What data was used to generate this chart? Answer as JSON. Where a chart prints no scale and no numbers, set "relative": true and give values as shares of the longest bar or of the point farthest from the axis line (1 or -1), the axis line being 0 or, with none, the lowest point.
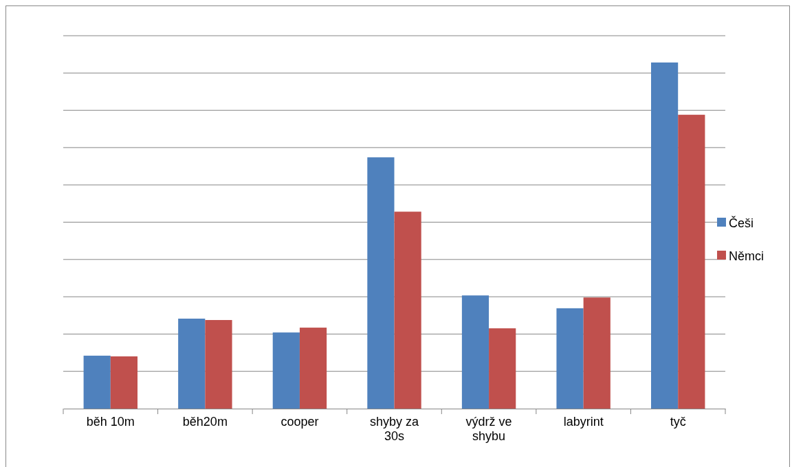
{
  "chart_data": {
    "type": "bar",
    "relative": true,
    "grid": true,
    "legend": "right",
    "categories": [
      "běh 10m",
      "běh20m",
      "cooper",
      "shyby za 30s",
      "výdrž ve shybu",
      "labyrint",
      "tyč"
    ],
    "series": [
      {
        "name": "Češi",
        "color": "#4f81bd",
        "values": [
          0.153,
          0.26,
          0.22,
          0.726,
          0.327,
          0.29,
          1
        ]
      },
      {
        "name": "Němci",
        "color": "#c0504d",
        "values": [
          0.151,
          0.256,
          0.234,
          0.569,
          0.232,
          0.321,
          0.849
        ]
      }
    ]
  }
}
